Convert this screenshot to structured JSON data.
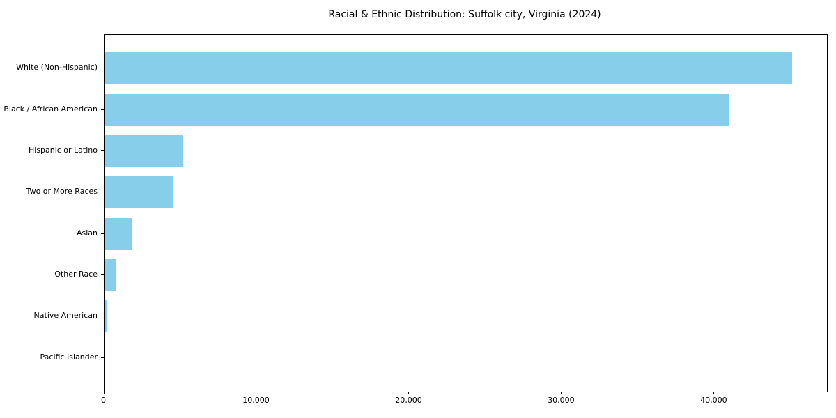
{
  "chart_data": {
    "type": "bar",
    "orientation": "horizontal",
    "title": "Racial & Ethnic Distribution: Suffolk city, Virginia (2024)",
    "categories": [
      "White (Non-Hispanic)",
      "Black / African American",
      "Hispanic or Latino",
      "Two or More Races",
      "Asian",
      "Other Race",
      "Native American",
      "Pacific Islander"
    ],
    "values": [
      45100,
      41000,
      5150,
      4540,
      1840,
      810,
      140,
      30
    ],
    "xlabel": "",
    "ylabel": "",
    "xlim": [
      0,
      47355
    ],
    "xticks": [
      0,
      10000,
      20000,
      30000,
      40000
    ],
    "xtick_labels": [
      "0",
      "10,000",
      "20,000",
      "30,000",
      "40,000"
    ],
    "bar_color": "#87CEEB",
    "background_color": "#FFFFFF",
    "spine_color": "#000000",
    "grid": false,
    "legend": null
  }
}
